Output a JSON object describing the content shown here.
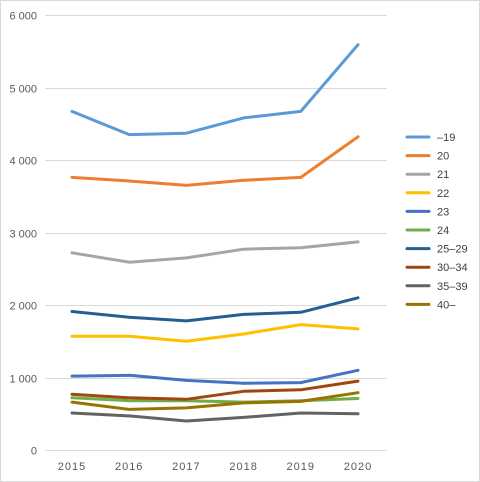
{
  "chart_data": {
    "type": "line",
    "x": [
      "2015",
      "2016",
      "2017",
      "2018",
      "2019",
      "2020"
    ],
    "ylim": [
      0,
      6000
    ],
    "yticks": [
      {
        "value": 0,
        "label": "0"
      },
      {
        "value": 1000,
        "label": "1 000"
      },
      {
        "value": 2000,
        "label": "2 000"
      },
      {
        "value": 3000,
        "label": "3 000"
      },
      {
        "value": 4000,
        "label": "4 000"
      },
      {
        "value": 5000,
        "label": "5 000"
      },
      {
        "value": 6000,
        "label": "6 000"
      }
    ],
    "grid": true,
    "legend_position": "right",
    "series": [
      {
        "name": "–19",
        "color": "#5b9bd5",
        "values": [
          4670,
          4350,
          4370,
          4580,
          4670,
          5590
        ]
      },
      {
        "name": "20",
        "color": "#ed7d31",
        "values": [
          3760,
          3710,
          3650,
          3720,
          3760,
          4320
        ]
      },
      {
        "name": "21",
        "color": "#a5a5a5",
        "values": [
          2720,
          2590,
          2650,
          2770,
          2790,
          2870
        ]
      },
      {
        "name": "22",
        "color": "#ffc000",
        "values": [
          1570,
          1570,
          1500,
          1600,
          1730,
          1670
        ]
      },
      {
        "name": "23",
        "color": "#4472c4",
        "values": [
          1020,
          1030,
          960,
          920,
          930,
          1100
        ]
      },
      {
        "name": "24",
        "color": "#70ad47",
        "values": [
          720,
          680,
          680,
          660,
          680,
          710
        ]
      },
      {
        "name": "25–29",
        "color": "#255e91",
        "values": [
          1910,
          1830,
          1780,
          1870,
          1900,
          2100
        ]
      },
      {
        "name": "30–34",
        "color": "#9e480e",
        "values": [
          770,
          720,
          700,
          810,
          830,
          950
        ]
      },
      {
        "name": "35–39",
        "color": "#636363",
        "values": [
          510,
          470,
          400,
          450,
          510,
          500
        ]
      },
      {
        "name": "40–",
        "color": "#997300",
        "values": [
          660,
          560,
          580,
          650,
          670,
          790
        ]
      }
    ]
  }
}
